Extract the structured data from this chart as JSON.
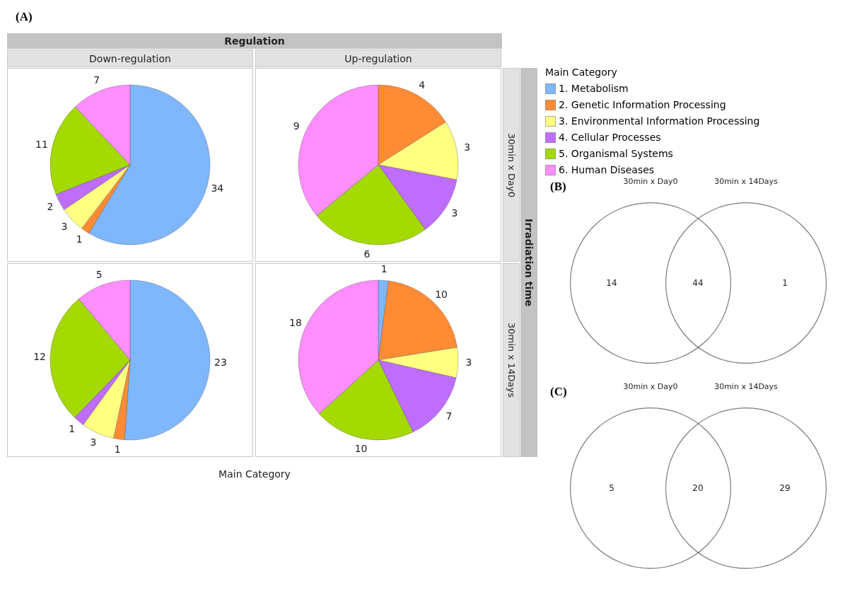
{
  "chart_data": [
    {
      "type": "pie",
      "title": "Down-regulation",
      "xlabel": "Main Category",
      "legend": "right",
      "legend_title": "Main Category",
      "annotations": [
        "(A)",
        "Regulation",
        "Irradiation time"
      ],
      "categories": [
        "1. Metabolism",
        "2. Genetic Information Processing",
        "3. Environmental Information Processing",
        "4. Cellular Processes",
        "5. Organismal Systems",
        "6. Human Diseases"
      ],
      "values": [
        34,
        1,
        3,
        2,
        11,
        7
      ],
      "colors": [
        "#7fb7fd",
        "#ff8c35",
        "#ffff80",
        "#be6dff",
        "#a4d902",
        "#ff8eff"
      ],
      "data_labels": true
    },
    {
      "type": "pie",
      "title": "Up-regulation",
      "y2label": "30min x Day0",
      "categories": [
        null,
        null,
        null,
        null,
        null,
        null
      ],
      "values": [
        null,
        4,
        3,
        3,
        6,
        9
      ],
      "colors": [
        "#7fb7fd",
        "#ff8c35",
        "#ffff80",
        "#be6dff",
        "#a4d902",
        "#ff8eff"
      ],
      "data_labels": true
    },
    {
      "type": "pie",
      "categories": [
        null,
        null,
        null,
        null,
        null,
        null
      ],
      "values": [
        23,
        1,
        3,
        1,
        12,
        5
      ],
      "colors": [
        "#7fb7fd",
        "#ff8c35",
        "#ffff80",
        "#be6dff",
        "#a4d902",
        "#ff8eff"
      ],
      "data_labels": true
    },
    {
      "type": "pie",
      "y2label": "30min x 14Days",
      "categories": [
        null,
        null,
        null,
        null,
        null,
        null
      ],
      "values": [
        1,
        10,
        3,
        7,
        10,
        18
      ],
      "colors": [
        "#7fb7fd",
        "#ff8c35",
        "#ffff80",
        "#be6dff",
        "#a4d902",
        "#ff8eff"
      ],
      "data_labels": true
    },
    {
      "type": "other",
      "title": "(B)",
      "categories": [
        "30min x Day0",
        null,
        "30min x 14Days"
      ],
      "values": [
        14,
        44,
        1
      ],
      "data_labels": true
    },
    {
      "type": "other",
      "title": "(C)",
      "categories": [
        "30min x Day0",
        null,
        "30min x 14Days"
      ],
      "values": [
        5,
        20,
        29
      ],
      "data_labels": true
    }
  ]
}
